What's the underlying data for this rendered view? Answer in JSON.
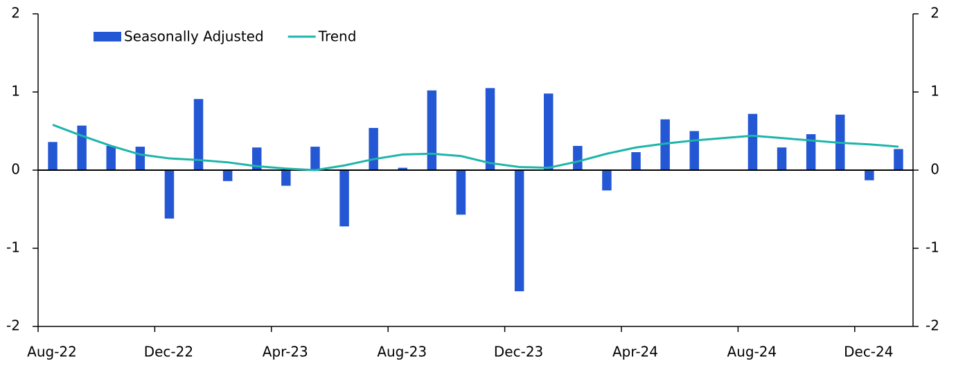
{
  "chart_data": {
    "type": "bar_line",
    "categories": [
      "Aug-22",
      null,
      null,
      null,
      "Dec-22",
      null,
      null,
      null,
      "Apr-23",
      null,
      null,
      null,
      "Aug-23",
      null,
      null,
      null,
      "Dec-23",
      null,
      null,
      null,
      "Apr-24",
      null,
      null,
      null,
      "Aug-24",
      null,
      null,
      null,
      "Dec-24",
      null
    ],
    "series": [
      {
        "name": "Seasonally Adjusted",
        "type": "bar",
        "color": "#2457d4",
        "values": [
          0.36,
          0.57,
          0.31,
          0.3,
          -0.62,
          0.91,
          -0.14,
          0.29,
          -0.2,
          0.3,
          -0.72,
          0.54,
          0.03,
          1.02,
          -0.57,
          1.05,
          -1.55,
          0.98,
          0.31,
          -0.26,
          0.23,
          0.65,
          0.5,
          0,
          0.72,
          0.29,
          0.46,
          0.71,
          -0.13,
          0.27
        ]
      },
      {
        "name": "Trend",
        "type": "line",
        "color": "#1db5a9",
        "values": [
          0.58,
          0.44,
          0.31,
          0.2,
          0.15,
          0.13,
          0.1,
          0.05,
          0.02,
          0.0,
          0.06,
          0.14,
          0.2,
          0.21,
          0.18,
          0.09,
          0.04,
          0.03,
          0.11,
          0.21,
          0.29,
          0.34,
          0.38,
          0.41,
          0.44,
          0.41,
          0.38,
          0.35,
          0.33,
          0.3
        ]
      }
    ],
    "ylim": [
      -2,
      2
    ],
    "yticks": [
      -2,
      -1,
      0,
      1,
      2
    ],
    "y2lim": [
      -2,
      2
    ],
    "y2ticks": [
      -2,
      -1,
      0,
      1,
      2
    ]
  }
}
